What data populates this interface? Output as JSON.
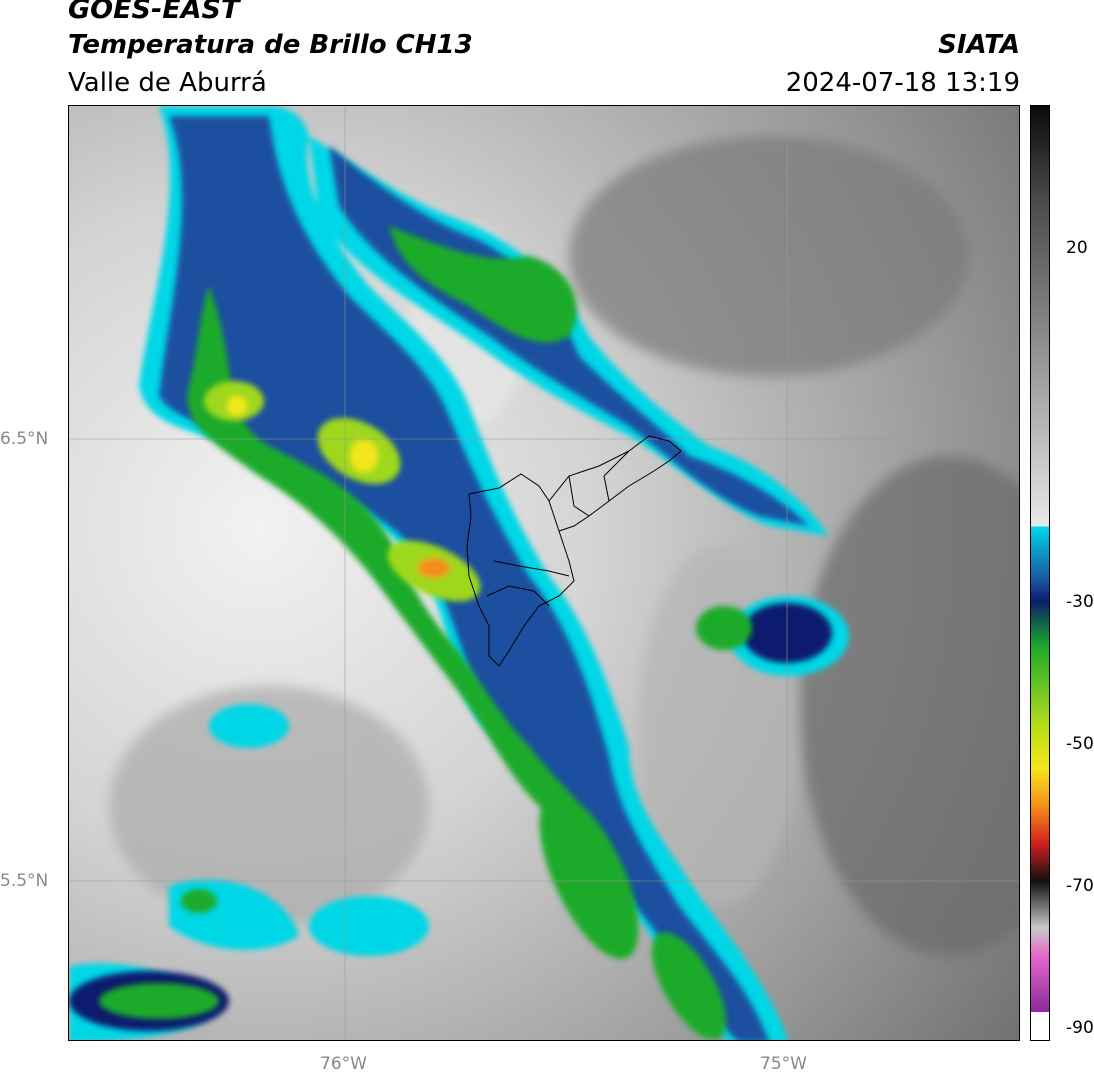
{
  "header": {
    "satellite": "GOES-EAST",
    "product": "Temperatura de Brillo CH13",
    "region": "Valle de Aburrá",
    "org": "SIATA",
    "datetime": "2024-07-18 13:19"
  },
  "map": {
    "lat_labels": [
      "6.5°N",
      "5.5°N"
    ],
    "lon_labels": [
      "76°W",
      "75°W"
    ],
    "extent": {
      "lon_min": -76.62,
      "lon_max": -74.47,
      "lat_min": 5.14,
      "lat_max": 7.25
    }
  },
  "colorbar": {
    "ticks": [
      "20",
      "-30",
      "-50",
      "-70",
      "-90"
    ],
    "range": [
      -92,
      40
    ],
    "colors": {
      "gray": "#8c8c8c",
      "cyan": "#00d7e6",
      "blue": "#1a4fa0",
      "navy": "#0a1f6e",
      "green": "#1faa2a",
      "yellow": "#f4e61a",
      "orange": "#f58c1a",
      "red": "#d21e1e",
      "pink": "#e667c8",
      "purple": "#8c2aa0"
    }
  },
  "icons": {
    "municipal_boundaries": "boundary-lines"
  }
}
